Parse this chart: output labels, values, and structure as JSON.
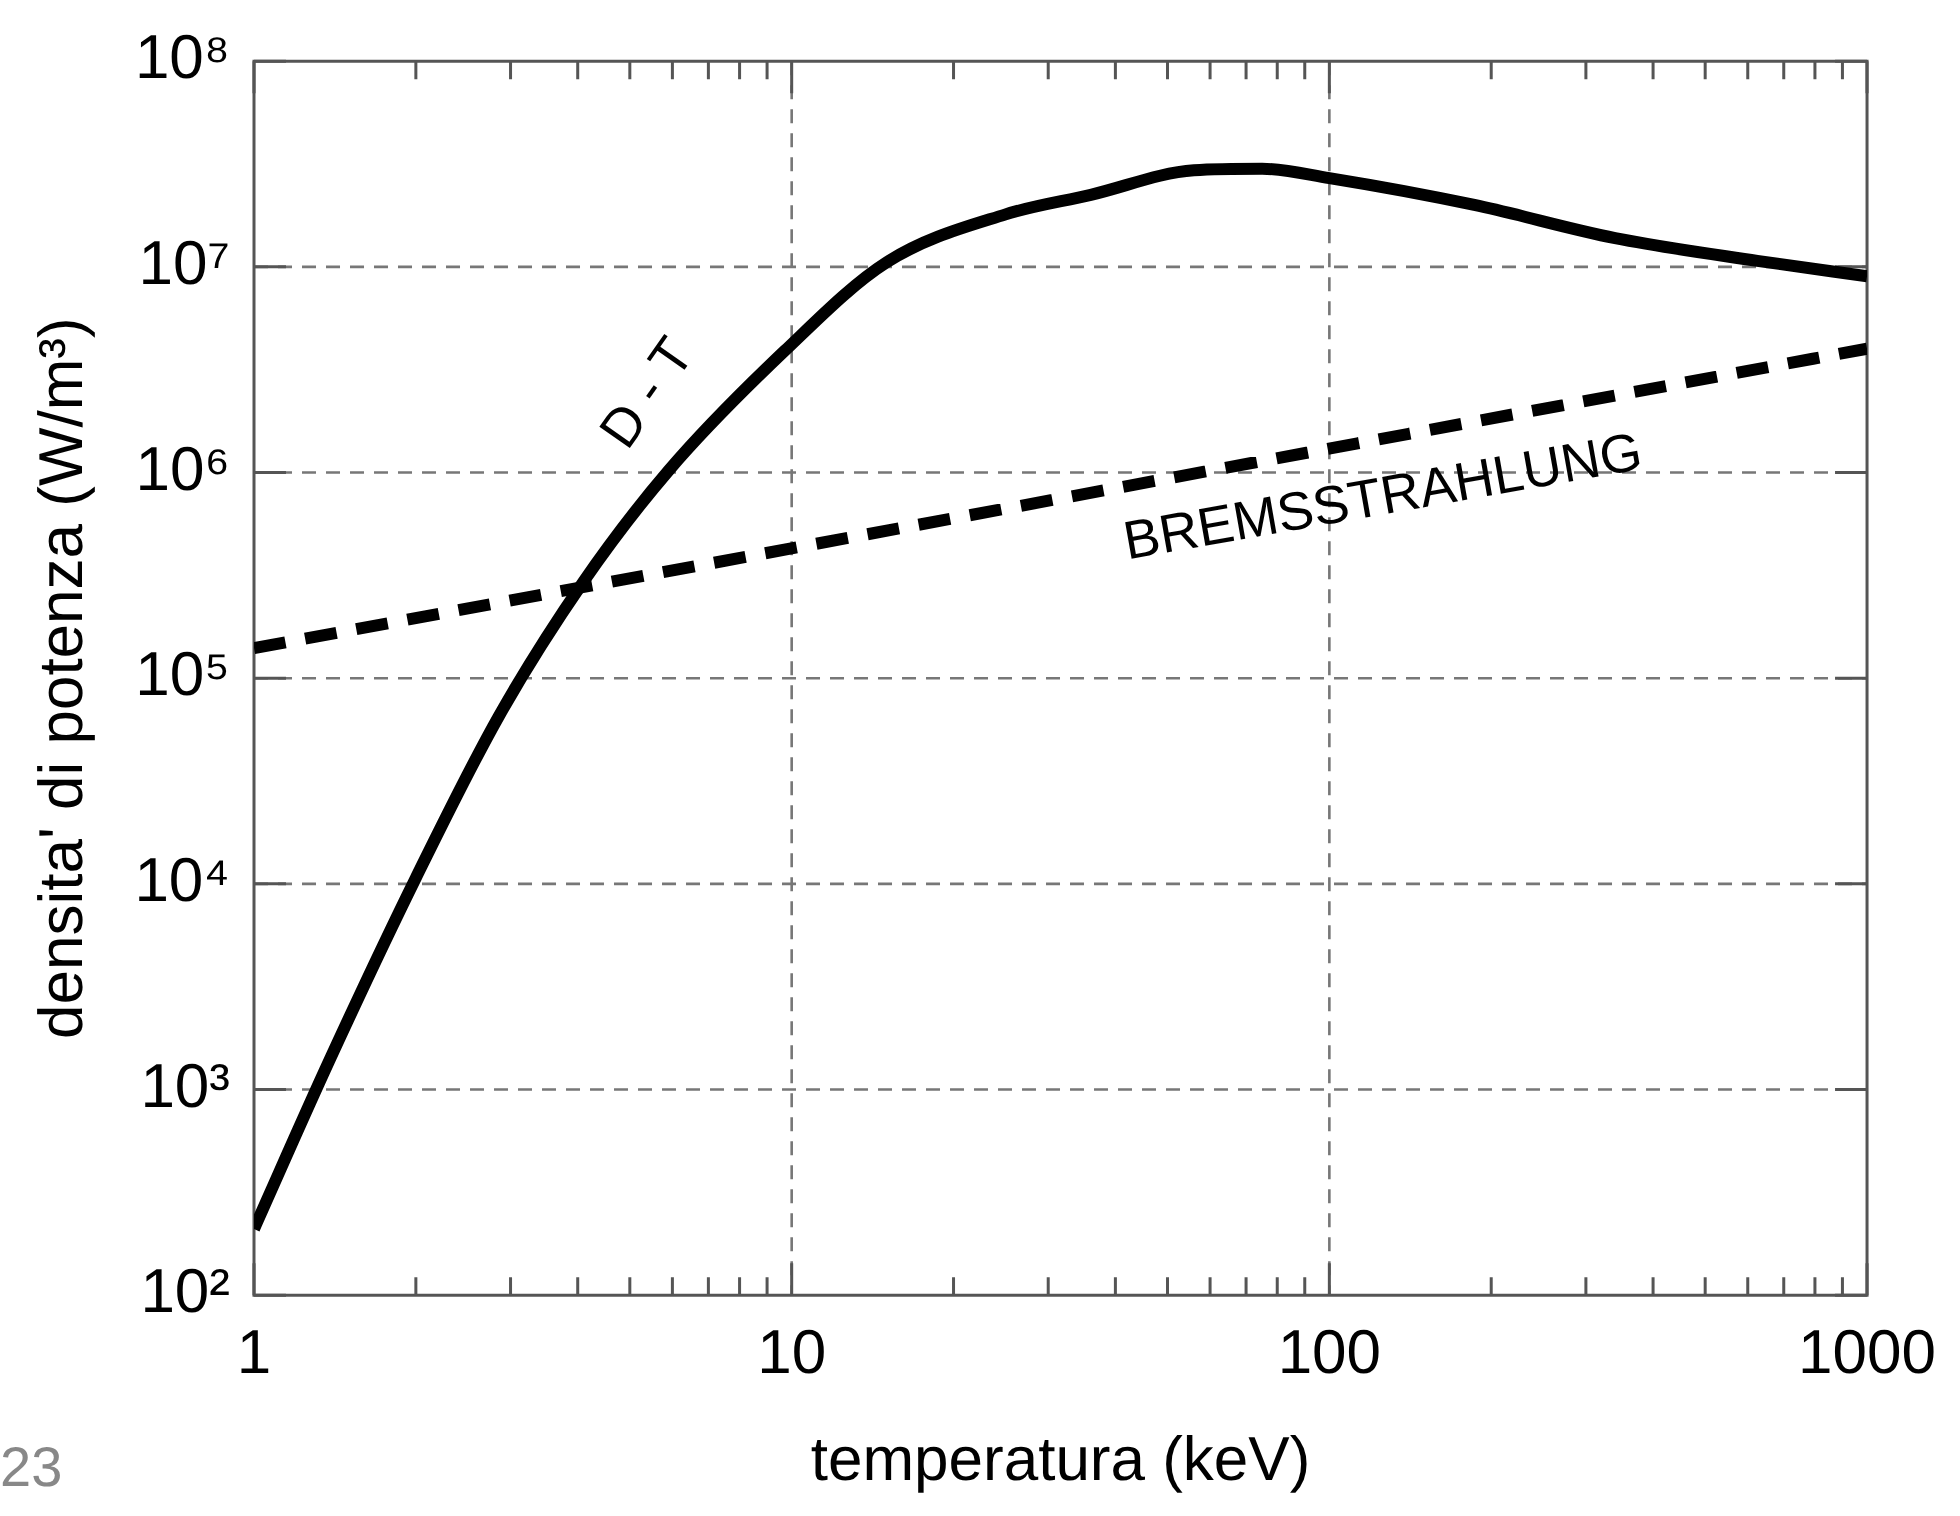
{
  "chart_data": {
    "type": "line",
    "xlabel": "temperatura (keV)",
    "ylabel": "densita' di potenza (W/m³)",
    "log": "xy",
    "grid": true,
    "legend": false,
    "marker": "none",
    "xlim": [
      1,
      1000
    ],
    "xticks": [
      1,
      {
        "value": 2,
        "label": null
      },
      {
        "value": 3,
        "label": null
      },
      {
        "value": 4,
        "label": null
      },
      {
        "value": 5,
        "label": null
      },
      {
        "value": 6,
        "label": null
      },
      {
        "value": 7,
        "label": null
      },
      {
        "value": 8,
        "label": null
      },
      {
        "value": 9,
        "label": null
      },
      10,
      {
        "value": 20,
        "label": null
      },
      {
        "value": 30,
        "label": null
      },
      {
        "value": 40,
        "label": null
      },
      {
        "value": 50,
        "label": null
      },
      {
        "value": 60,
        "label": null
      },
      {
        "value": 70,
        "label": null
      },
      {
        "value": 80,
        "label": null
      },
      {
        "value": 90,
        "label": null
      },
      100,
      {
        "value": 200,
        "label": null
      },
      {
        "value": 300,
        "label": null
      },
      {
        "value": 400,
        "label": null
      },
      {
        "value": 500,
        "label": null
      },
      {
        "value": 600,
        "label": null
      },
      {
        "value": 700,
        "label": null
      },
      {
        "value": 800,
        "label": null
      },
      {
        "value": 900,
        "label": null
      },
      1000
    ],
    "ylim": [
      100,
      100000000
    ],
    "yticks": [
      {
        "value": 100,
        "label": "10²"
      },
      {
        "value": 1000,
        "label": "10³"
      },
      {
        "value": 10000,
        "label": "10⁴"
      },
      {
        "value": 100000,
        "label": "10⁵"
      },
      {
        "value": 1000000,
        "label": "10⁶"
      },
      {
        "value": 10000000,
        "label": "10⁷"
      },
      {
        "value": 100000000,
        "label": "10⁸"
      }
    ],
    "series": [
      {
        "color": "#000000",
        "line_style": "solid",
        "x": [
          1,
          1.38,
          2,
          2.85,
          4.1,
          5.9,
          9.7,
          15,
          25,
          36,
          56,
          75,
          100,
          186,
          340,
          625,
          1000
        ],
        "values": [
          210,
          1380,
          10700,
          65000,
          295000,
          1020000,
          3900000,
          10500000,
          18000000,
          22400000,
          29500000,
          30000000,
          27000000,
          20000000,
          13800000,
          10700000,
          9000000
        ]
      },
      {
        "color": "#000000",
        "line_style": "dashed",
        "x": [
          1,
          1000
        ],
        "values": [
          140000,
          4000000
        ]
      }
    ],
    "annotations": [
      "D - T",
      "BREMSSTRAHLUNG",
      "23"
    ]
  }
}
